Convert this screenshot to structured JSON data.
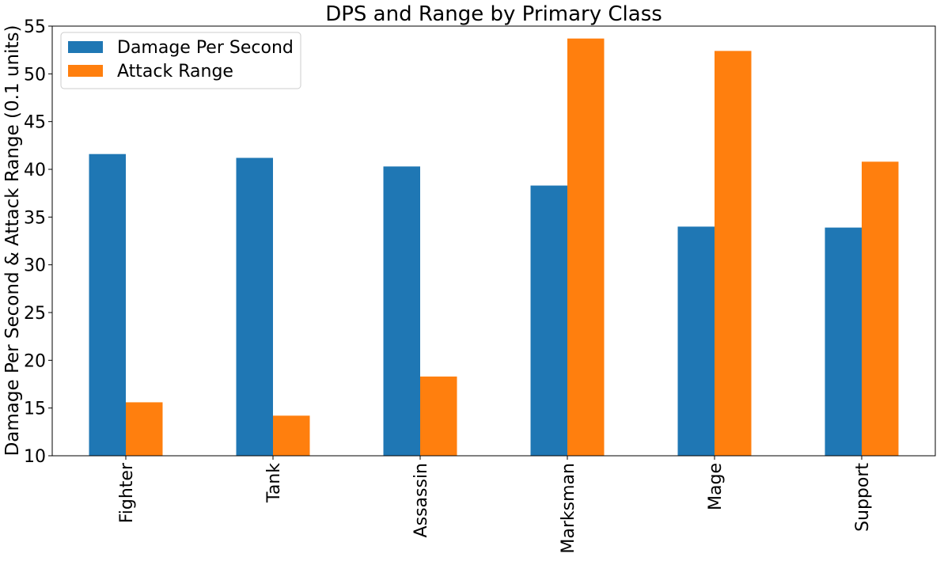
{
  "chart_data": {
    "type": "bar",
    "title": "DPS and Range by Primary Class",
    "xlabel": "",
    "ylabel": "Damage Per Second & Attack Range (0.1 units)",
    "categories": [
      "Fighter",
      "Tank",
      "Assassin",
      "Marksman",
      "Mage",
      "Support"
    ],
    "series": [
      {
        "name": "Damage Per Second",
        "color": "#1f77b4",
        "values": [
          41.6,
          41.2,
          40.3,
          38.3,
          34.0,
          33.9
        ]
      },
      {
        "name": "Attack Range",
        "color": "#ff7f0e",
        "values": [
          15.6,
          14.2,
          18.3,
          53.7,
          52.4,
          40.8
        ]
      }
    ],
    "ylim": [
      10,
      55
    ],
    "yticks": [
      10,
      15,
      20,
      25,
      30,
      35,
      40,
      45,
      50,
      55
    ],
    "grid": false,
    "legend": "top-left",
    "xtick_rotation": "vertical"
  }
}
